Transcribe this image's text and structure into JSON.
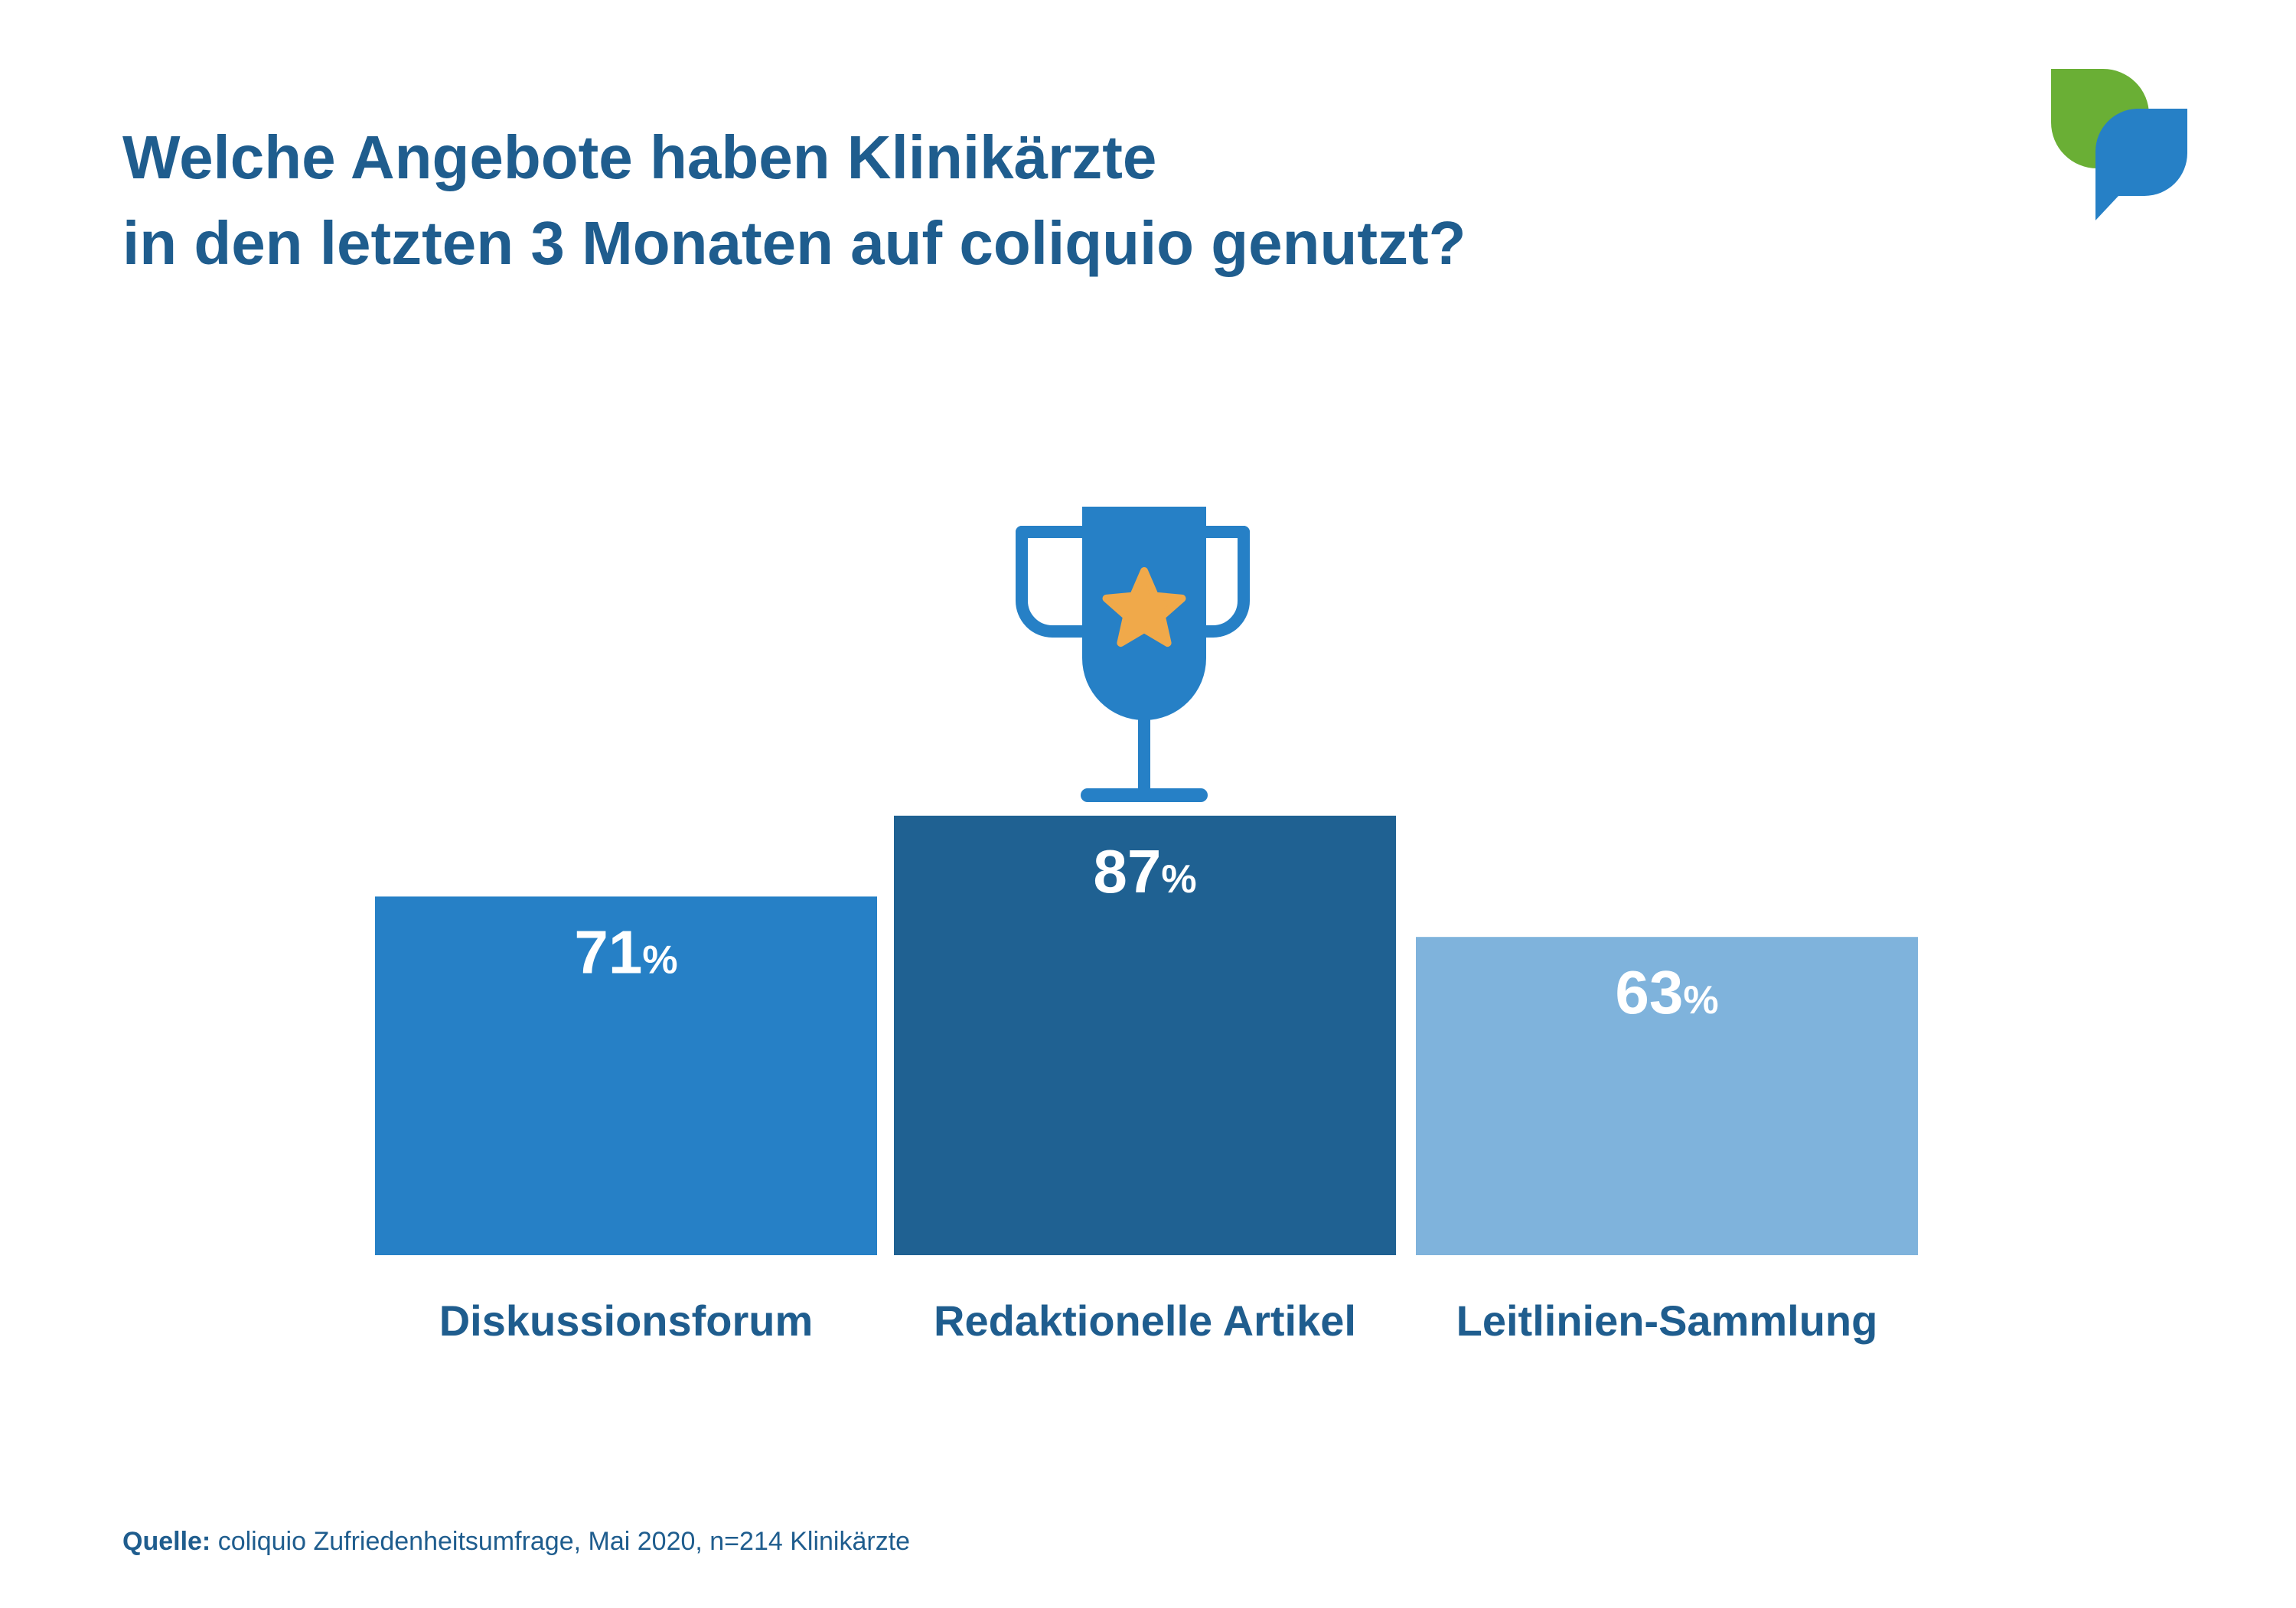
{
  "title_lines": [
    "Welche Angebote haben Klinikärzte",
    "in den letzten 3 Monaten auf coliquio genutzt?"
  ],
  "source": {
    "label": "Quelle:",
    "text": " coliquio Zufriedenheitsumfrage, Mai 2020, n=214 Klinikärzte"
  },
  "logo": {
    "name": "coliquio-speech-bubbles-logo",
    "colors": [
      "#6aaf35",
      "#2680c6"
    ]
  },
  "trophy": {
    "icon": "trophy-star-icon",
    "cup_color": "#2680c6",
    "star_color": "#f0a94a"
  },
  "chart_data": {
    "type": "bar",
    "categories": [
      "Diskussionsforum",
      "Redaktionelle Artikel",
      "Leitlinien-Sammlung"
    ],
    "values": [
      71,
      87,
      63
    ],
    "value_labels": [
      "71",
      "87",
      "63"
    ],
    "unit": "%",
    "colors": [
      "#2680c6",
      "#1f6192",
      "#7fb3dc"
    ],
    "label_color": "#1f5d8e",
    "highlight_index": 1,
    "grid": false,
    "legend": "none"
  }
}
